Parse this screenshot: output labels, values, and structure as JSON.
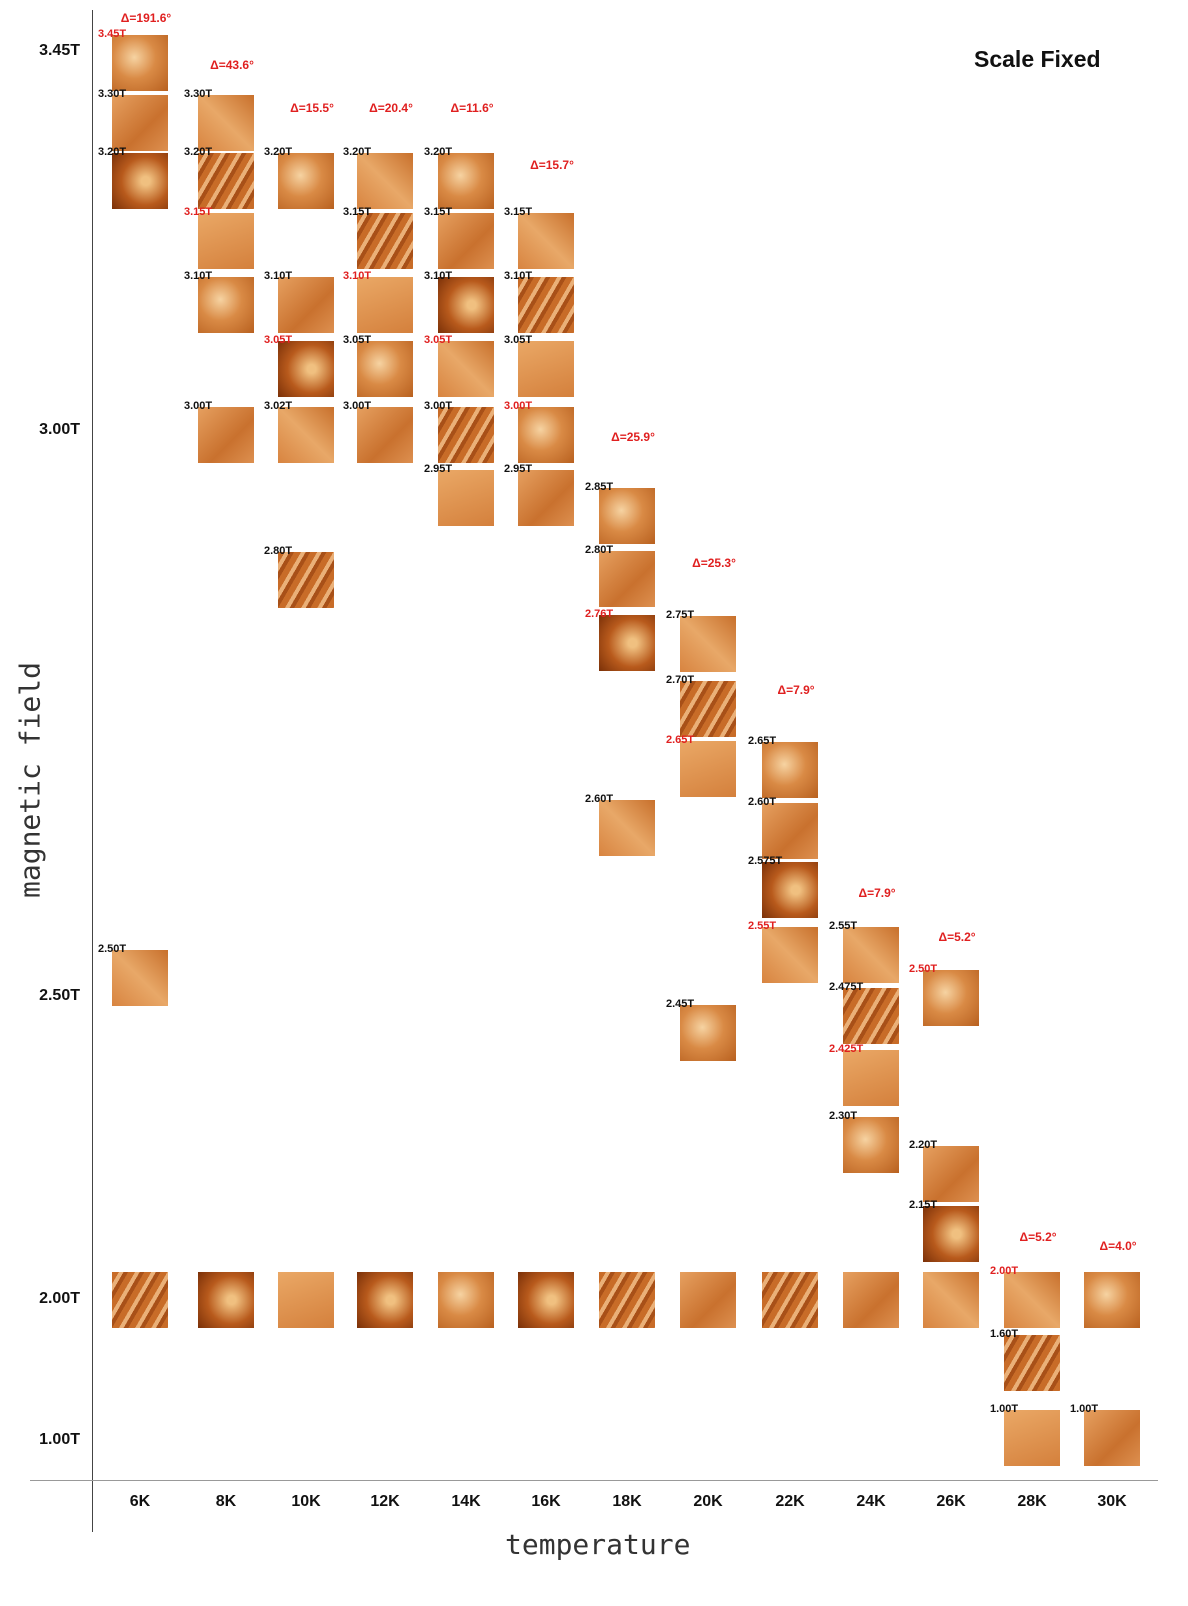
{
  "title": "Scale Fixed",
  "y_axis": {
    "label": "magnetic field",
    "ticks": [
      "3.45T",
      "3.00T",
      "2.50T",
      "2.00T",
      "1.00T"
    ]
  },
  "x_axis": {
    "label": "temperature"
  },
  "columns": [
    {
      "temperature": "6K",
      "delta": "Δ=191.6°",
      "images": [
        {
          "label": "3.45T",
          "highlight": true
        },
        {
          "label": "3.30T",
          "highlight": false
        },
        {
          "label": "3.20T",
          "highlight": false
        },
        {
          "label": "2.50T",
          "highlight": false
        },
        {
          "label": null,
          "highlight": false
        }
      ]
    },
    {
      "temperature": "8K",
      "delta": "Δ=43.6°",
      "images": [
        {
          "label": "3.30T",
          "highlight": false
        },
        {
          "label": "3.20T",
          "highlight": false
        },
        {
          "label": "3.15T",
          "highlight": true
        },
        {
          "label": "3.10T",
          "highlight": false
        },
        {
          "label": "3.00T",
          "highlight": false
        },
        {
          "label": null,
          "highlight": false
        }
      ]
    },
    {
      "temperature": "10K",
      "delta": "Δ=15.5°",
      "images": [
        {
          "label": "3.20T",
          "highlight": false
        },
        {
          "label": "3.10T",
          "highlight": false
        },
        {
          "label": "3.05T",
          "highlight": true
        },
        {
          "label": "3.02T",
          "highlight": false
        },
        {
          "label": "2.80T",
          "highlight": false
        },
        {
          "label": null,
          "highlight": false
        }
      ]
    },
    {
      "temperature": "12K",
      "delta": "Δ=20.4°",
      "images": [
        {
          "label": "3.20T",
          "highlight": false
        },
        {
          "label": "3.15T",
          "highlight": false
        },
        {
          "label": "3.10T",
          "highlight": true
        },
        {
          "label": "3.05T",
          "highlight": false
        },
        {
          "label": "3.00T",
          "highlight": false
        },
        {
          "label": null,
          "highlight": false
        }
      ]
    },
    {
      "temperature": "14K",
      "delta": "Δ=11.6°",
      "images": [
        {
          "label": "3.20T",
          "highlight": false
        },
        {
          "label": "3.15T",
          "highlight": false
        },
        {
          "label": "3.10T",
          "highlight": false
        },
        {
          "label": "3.05T",
          "highlight": true
        },
        {
          "label": "3.00T",
          "highlight": false
        },
        {
          "label": "2.95T",
          "highlight": false
        },
        {
          "label": null,
          "highlight": false
        }
      ]
    },
    {
      "temperature": "16K",
      "delta": "Δ=15.7°",
      "images": [
        {
          "label": "3.15T",
          "highlight": false
        },
        {
          "label": "3.10T",
          "highlight": false
        },
        {
          "label": "3.05T",
          "highlight": false
        },
        {
          "label": "3.00T",
          "highlight": true
        },
        {
          "label": "2.95T",
          "highlight": false
        },
        {
          "label": null,
          "highlight": false
        }
      ]
    },
    {
      "temperature": "18K",
      "delta": "Δ=25.9°",
      "images": [
        {
          "label": "2.85T",
          "highlight": false
        },
        {
          "label": "2.80T",
          "highlight": false
        },
        {
          "label": "2.76T",
          "highlight": true
        },
        {
          "label": "2.60T",
          "highlight": false
        },
        {
          "label": null,
          "highlight": false
        }
      ]
    },
    {
      "temperature": "20K",
      "delta": "Δ=25.3°",
      "images": [
        {
          "label": "2.75T",
          "highlight": false
        },
        {
          "label": "2.70T",
          "highlight": false
        },
        {
          "label": "2.65T",
          "highlight": true
        },
        {
          "label": "2.45T",
          "highlight": false
        },
        {
          "label": null,
          "highlight": false
        }
      ]
    },
    {
      "temperature": "22K",
      "delta": "Δ=7.9°",
      "images": [
        {
          "label": "2.65T",
          "highlight": false
        },
        {
          "label": "2.60T",
          "highlight": false
        },
        {
          "label": "2.575T",
          "highlight": false
        },
        {
          "label": "2.55T",
          "highlight": true
        },
        {
          "label": null,
          "highlight": false
        }
      ]
    },
    {
      "temperature": "24K",
      "delta": "Δ=7.9°",
      "images": [
        {
          "label": "2.55T",
          "highlight": false
        },
        {
          "label": "2.475T",
          "highlight": false
        },
        {
          "label": "2.425T",
          "highlight": true
        },
        {
          "label": "2.30T",
          "highlight": false
        },
        {
          "label": null,
          "highlight": false
        }
      ]
    },
    {
      "temperature": "26K",
      "delta": "Δ=5.2°",
      "images": [
        {
          "label": "2.50T",
          "highlight": true
        },
        {
          "label": "2.20T",
          "highlight": false
        },
        {
          "label": "2.15T",
          "highlight": false
        },
        {
          "label": null,
          "highlight": false
        }
      ]
    },
    {
      "temperature": "28K",
      "delta": "Δ=5.2°",
      "images": [
        {
          "label": "2.00T",
          "highlight": true
        },
        {
          "label": "1.60T",
          "highlight": false
        },
        {
          "label": "1.00T",
          "highlight": false
        }
      ]
    },
    {
      "temperature": "30K",
      "delta": "Δ=4.0°",
      "images": [
        {
          "label": null,
          "highlight": false
        },
        {
          "label": "1.00T",
          "highlight": false
        }
      ]
    }
  ]
}
